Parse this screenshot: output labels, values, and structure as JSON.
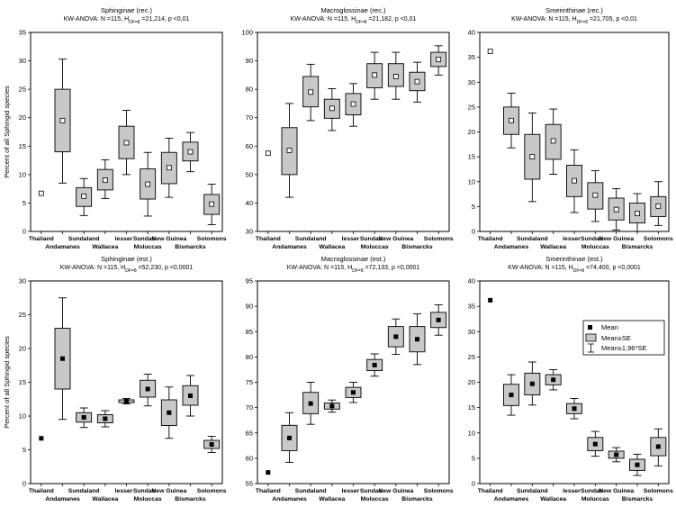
{
  "figure_title": "",
  "legend": {
    "mean_label": "Mean",
    "se_label": "Mean±SE",
    "ci_label": "Mean±1,96*SE",
    "placement": "right, inside bottom-right panel"
  },
  "categories": [
    "Thailand",
    "Andamanes",
    "Sundaland",
    "Wallacea",
    "lesser Sundas",
    "Moluccas",
    "New Guinea",
    "Bismarcks",
    "Solomons"
  ],
  "category_label_rows": {
    "top": [
      "Thailand",
      "",
      "Sundaland",
      "",
      "lesser",
      "Sundas",
      "New Guinea",
      "",
      "Solomons"
    ],
    "bottom": [
      "",
      "Andamanes",
      "",
      "Wallacea",
      "",
      "Moluccas",
      "",
      "Bismarcks",
      ""
    ]
  },
  "chart_data": [
    {
      "type": "box",
      "title": "Sphinginae (rec.)",
      "subtitle": "KW-ANOVA: N =115, HDF=8 =21,214, p <0,01",
      "ylabel": "Percent of all Sphingid species",
      "ylim": [
        0,
        35
      ],
      "yticks": [
        0,
        5,
        10,
        15,
        20,
        25,
        30,
        35
      ],
      "marker": "open",
      "mean": [
        6.7,
        19.5,
        6.2,
        9.0,
        15.6,
        8.3,
        11.2,
        14.0,
        4.8
      ],
      "se_low": [
        null,
        14.0,
        4.4,
        7.3,
        12.8,
        5.7,
        8.4,
        12.4,
        3.0
      ],
      "se_high": [
        null,
        25.0,
        7.7,
        10.9,
        18.5,
        11.0,
        13.9,
        15.7,
        6.5
      ],
      "ci_low": [
        null,
        8.5,
        2.8,
        5.8,
        10.0,
        2.7,
        6.0,
        10.5,
        1.2
      ],
      "ci_high": [
        null,
        30.3,
        9.3,
        12.6,
        21.3,
        13.9,
        16.4,
        17.4,
        8.3
      ]
    },
    {
      "type": "box",
      "title": "Macroglossinae (rec.)",
      "subtitle": "KW-ANOVA: N =115, HDF=8 =21,182, p <0,01",
      "ylabel": "",
      "ylim": [
        30,
        100
      ],
      "yticks": [
        30,
        40,
        50,
        60,
        70,
        80,
        90,
        100
      ],
      "marker": "open",
      "mean": [
        57.5,
        58.5,
        79.0,
        73.3,
        74.8,
        85.0,
        84.5,
        82.7,
        90.5
      ],
      "se_low": [
        null,
        50.0,
        73.8,
        69.8,
        71.0,
        80.5,
        81.0,
        79.5,
        88.0
      ],
      "se_high": [
        null,
        66.5,
        84.5,
        76.5,
        78.5,
        89.0,
        89.0,
        86.0,
        93.0
      ],
      "ci_low": [
        null,
        42.0,
        69.0,
        65.5,
        67.0,
        76.5,
        76.5,
        75.5,
        85.0
      ],
      "ci_high": [
        null,
        75.0,
        88.8,
        80.2,
        82.0,
        93.0,
        93.0,
        89.5,
        95.3
      ]
    },
    {
      "type": "box",
      "title": "Smerinthinae (rec.)",
      "subtitle": "KW-ANOVA: N =115, HDF=8 =21,705, p <0,01",
      "ylabel": "",
      "ylim": [
        0,
        40
      ],
      "yticks": [
        0,
        5,
        10,
        15,
        20,
        25,
        30,
        35,
        40
      ],
      "marker": "open",
      "mean": [
        36.2,
        22.3,
        15.0,
        18.2,
        10.2,
        7.3,
        4.4,
        3.6,
        5.1
      ],
      "se_low": [
        null,
        19.5,
        10.5,
        14.5,
        7.0,
        4.5,
        2.3,
        1.7,
        3.0
      ],
      "se_high": [
        null,
        25.0,
        19.5,
        21.5,
        13.3,
        9.8,
        6.7,
        5.7,
        7.0
      ],
      "ci_low": [
        null,
        16.8,
        6.0,
        11.5,
        3.8,
        2.0,
        0.3,
        0.0,
        1.2
      ],
      "ci_high": [
        null,
        27.8,
        23.8,
        24.6,
        16.4,
        12.2,
        8.6,
        7.6,
        10.0
      ]
    },
    {
      "type": "box",
      "title": "Sphinginae (est.)",
      "subtitle": "KW-ANOVA: N =115, HDF=8 =52,230, p <0,0001",
      "ylabel": "Percent of all Sphingid species",
      "ylim": [
        0,
        30
      ],
      "yticks": [
        0,
        5,
        10,
        15,
        20,
        25,
        30
      ],
      "marker": "filled",
      "mean": [
        6.7,
        18.5,
        9.8,
        9.6,
        12.2,
        14.0,
        10.5,
        13.0,
        5.8
      ],
      "se_low": [
        null,
        14.0,
        9.1,
        9.0,
        12.0,
        12.8,
        8.6,
        11.6,
        5.2
      ],
      "se_high": [
        null,
        23.0,
        10.5,
        10.2,
        12.4,
        15.3,
        12.4,
        14.5,
        6.4
      ],
      "ci_low": [
        null,
        9.5,
        8.3,
        8.4,
        11.8,
        11.5,
        6.7,
        10.0,
        4.6
      ],
      "ci_high": [
        null,
        27.5,
        11.2,
        10.8,
        12.6,
        16.2,
        14.3,
        16.0,
        7.0
      ]
    },
    {
      "type": "box",
      "title": "Macroglossinae (est.)",
      "subtitle": "KW-ANOVA: N =115, HDF=8 =72,133, p <0,0001",
      "ylabel": "",
      "ylim": [
        55,
        95
      ],
      "yticks": [
        55,
        60,
        65,
        70,
        75,
        80,
        85,
        90,
        95
      ],
      "marker": "filled",
      "mean": [
        57.2,
        64.0,
        70.8,
        70.3,
        73.0,
        78.4,
        84.0,
        83.5,
        87.3
      ],
      "se_low": [
        null,
        61.5,
        68.8,
        69.7,
        72.0,
        77.3,
        82.0,
        81.0,
        85.8
      ],
      "se_high": [
        null,
        66.5,
        73.0,
        70.9,
        74.0,
        79.5,
        86.0,
        86.0,
        88.8
      ],
      "ci_low": [
        null,
        59.2,
        66.7,
        69.1,
        71.0,
        76.2,
        80.5,
        78.5,
        84.3
      ],
      "ci_high": [
        null,
        69.0,
        75.0,
        71.5,
        75.0,
        80.6,
        87.5,
        88.5,
        90.3
      ]
    },
    {
      "type": "box",
      "title": "Smerinthinae (est.)",
      "subtitle": "KW-ANOVA: N =115, HDF=8 =74,400, p <0,0001",
      "ylabel": "",
      "ylim": [
        0,
        40
      ],
      "yticks": [
        0,
        5,
        10,
        15,
        20,
        25,
        30,
        35,
        40
      ],
      "marker": "filled",
      "mean": [
        36.2,
        17.5,
        19.7,
        20.5,
        14.8,
        7.8,
        5.7,
        3.7,
        7.3
      ],
      "se_low": [
        null,
        15.4,
        17.5,
        19.5,
        13.8,
        6.5,
        5.0,
        2.6,
        5.5
      ],
      "se_high": [
        null,
        19.6,
        21.8,
        21.5,
        15.8,
        9.1,
        6.4,
        4.8,
        9.1
      ],
      "ci_low": [
        null,
        13.5,
        15.5,
        18.5,
        12.8,
        5.4,
        4.3,
        1.6,
        3.5
      ],
      "ci_high": [
        null,
        21.5,
        24.0,
        22.5,
        16.8,
        10.3,
        7.1,
        5.8,
        10.8
      ]
    }
  ]
}
